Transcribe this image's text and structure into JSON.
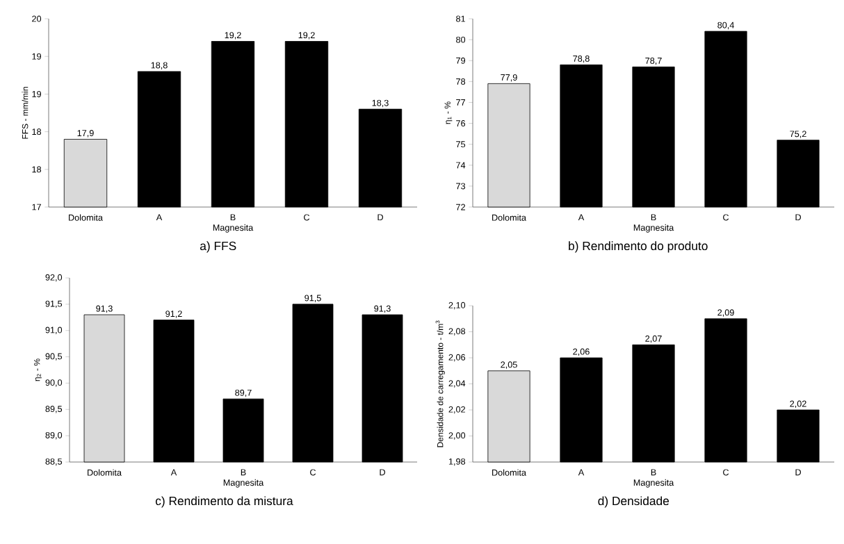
{
  "chart_data": [
    {
      "type": "bar",
      "title": "a) FFS",
      "xlabel": "Magnesita",
      "ylabel": "FFS - mm/min",
      "categories": [
        "Dolomita",
        "A",
        "B",
        "C",
        "D"
      ],
      "values": [
        17.9,
        18.8,
        19.2,
        19.2,
        18.3
      ],
      "value_labels": [
        "17,9",
        "18,8",
        "19,2",
        "19,2",
        "18,3"
      ],
      "colors": [
        "#d9d9d9",
        "#000000",
        "#000000",
        "#000000",
        "#000000"
      ],
      "ylim": [
        17,
        19.5
      ],
      "yticks": [
        17,
        {
          "value": 17.5,
          "label": "18"
        },
        18,
        {
          "value": 18.5,
          "label": "19"
        },
        19,
        {
          "value": 19.5,
          "label": "20"
        }
      ]
    },
    {
      "type": "bar",
      "title": "b) Rendimento do produto",
      "xlabel": "Magnesita",
      "ylabel": "η$_{1}$ - %",
      "categories": [
        "Dolomita",
        "A",
        "B",
        "C",
        "D"
      ],
      "values": [
        77.9,
        78.8,
        78.7,
        80.4,
        75.2
      ],
      "value_labels": [
        "77,9",
        "78,8",
        "78,7",
        "80,4",
        "75,2"
      ],
      "colors": [
        "#d9d9d9",
        "#000000",
        "#000000",
        "#000000",
        "#000000"
      ],
      "ylim": [
        72,
        81
      ],
      "yticks": [
        72,
        73,
        74,
        75,
        76,
        77,
        78,
        79,
        80,
        81
      ]
    },
    {
      "type": "bar",
      "title": "c) Rendimento da mistura",
      "xlabel": "Magnesita",
      "ylabel": "η$_{2}$ - %",
      "categories": [
        "Dolomita",
        "A",
        "B",
        "C",
        "D"
      ],
      "values": [
        91.3,
        91.2,
        89.7,
        91.5,
        91.3
      ],
      "value_labels": [
        "91,3",
        "91,2",
        "89,7",
        "91,5",
        "91,3"
      ],
      "colors": [
        "#d9d9d9",
        "#000000",
        "#000000",
        "#000000",
        "#000000"
      ],
      "ylim": [
        88.5,
        92
      ],
      "yticks": [
        {
          "value": 88.5,
          "label": "88,5"
        },
        {
          "value": 89,
          "label": "89,0"
        },
        {
          "value": 89.5,
          "label": "89,5"
        },
        {
          "value": 90,
          "label": "90,0"
        },
        {
          "value": 90.5,
          "label": "90,5"
        },
        {
          "value": 91,
          "label": "91,0"
        },
        {
          "value": 91.5,
          "label": "91,5"
        },
        {
          "value": 92,
          "label": "92,0"
        }
      ]
    },
    {
      "type": "bar",
      "title": "d) Densidade",
      "xlabel": "Magnesita",
      "ylabel": "Densidade de carregamento - t/m$^{3}$",
      "categories": [
        "Dolomita",
        "A",
        "B",
        "C",
        "D"
      ],
      "values": [
        2.05,
        2.06,
        2.07,
        2.09,
        2.02
      ],
      "value_labels": [
        "2,05",
        "2,06",
        "2,07",
        "2,09",
        "2,02"
      ],
      "colors": [
        "#d9d9d9",
        "#000000",
        "#000000",
        "#000000",
        "#000000"
      ],
      "ylim": [
        1.98,
        2.1
      ],
      "yticks": [
        {
          "value": 1.98,
          "label": "1,98"
        },
        {
          "value": 2.0,
          "label": "2,00"
        },
        {
          "value": 2.02,
          "label": "2,02"
        },
        {
          "value": 2.04,
          "label": "2,04"
        },
        {
          "value": 2.06,
          "label": "2,06"
        },
        {
          "value": 2.08,
          "label": "2,08"
        },
        {
          "value": 2.1,
          "label": "2,10"
        }
      ]
    }
  ]
}
